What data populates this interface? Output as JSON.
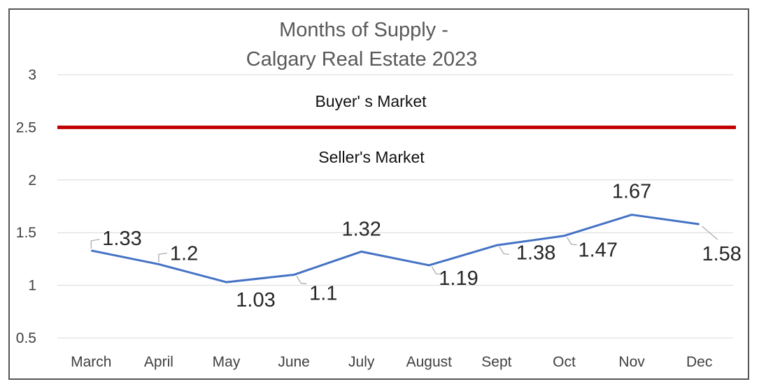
{
  "chart_data": {
    "type": "line",
    "title_lines": [
      "Months of Supply -",
      "Calgary Real Estate 2023"
    ],
    "categories": [
      "March",
      "April",
      "May",
      "June",
      "July",
      "August",
      "Sept",
      "Oct",
      "Nov",
      "Dec"
    ],
    "values": [
      1.33,
      1.2,
      1.03,
      1.1,
      1.32,
      1.19,
      1.38,
      1.47,
      1.67,
      1.58
    ],
    "data_labels": [
      "1.33",
      "1.2",
      "1.03",
      "1.1",
      "1.32",
      "1.19",
      "1.38",
      "1.47",
      "1.67",
      "1.58"
    ],
    "yticks": [
      "0.5",
      "1",
      "1.5",
      "2",
      "2.5",
      "3"
    ],
    "ylim": [
      0.5,
      3
    ],
    "grid": true,
    "threshold": {
      "value": 2.5,
      "color": "#c00000"
    },
    "line_color": "#4472c4",
    "annotations": {
      "above": "Buyer' s Market",
      "below": "Seller's Market"
    }
  }
}
